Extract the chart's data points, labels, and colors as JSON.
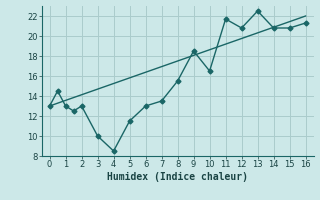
{
  "xlabel": "Humidex (Indice chaleur)",
  "background_color": "#cce8e8",
  "grid_color": "#aacccc",
  "line_color": "#1a6666",
  "xlim": [
    -0.5,
    16.5
  ],
  "ylim": [
    8,
    23
  ],
  "yticks": [
    8,
    10,
    12,
    14,
    16,
    18,
    20,
    22
  ],
  "xticks": [
    0,
    1,
    2,
    3,
    4,
    5,
    6,
    7,
    8,
    9,
    10,
    11,
    12,
    13,
    14,
    15,
    16
  ],
  "series1_x": [
    0,
    0.5,
    1,
    1.5,
    2,
    3,
    4,
    5,
    6,
    7,
    8,
    9,
    10,
    11,
    12,
    13,
    14,
    15,
    16
  ],
  "series1_y": [
    13,
    14.5,
    13,
    12.5,
    13,
    10,
    8.5,
    11.5,
    13,
    13.5,
    15.5,
    18.5,
    16.5,
    21.7,
    20.8,
    22.5,
    20.8,
    20.8,
    21.3
  ],
  "series2_x": [
    0,
    16
  ],
  "series2_y": [
    13,
    22
  ],
  "marker": "D",
  "marker_size": 2.5,
  "line_width": 1.0,
  "tick_fontsize": 6,
  "xlabel_fontsize": 7
}
